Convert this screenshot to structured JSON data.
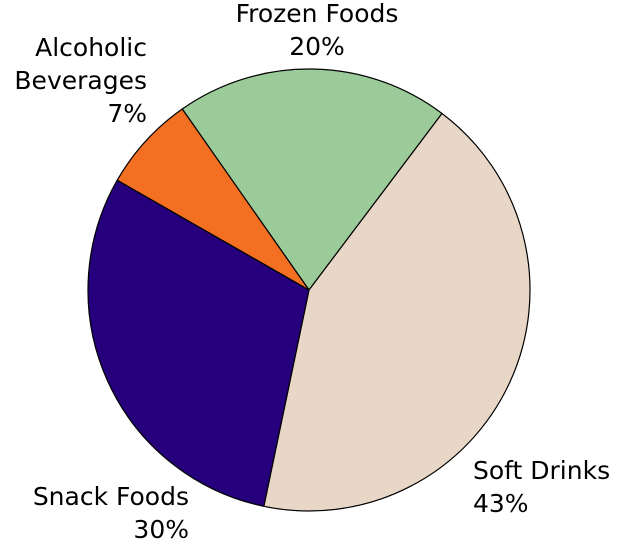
{
  "chart_data": {
    "type": "pie",
    "title": "",
    "slices": [
      {
        "name": "Frozen Foods",
        "value": 20,
        "label": "20%",
        "color": "#9ccb9a"
      },
      {
        "name": "Soft Drinks",
        "value": 43,
        "label": "43%",
        "color": "#e8d7c6"
      },
      {
        "name": "Snack Foods",
        "value": 30,
        "label": "30%",
        "color": "#26007c"
      },
      {
        "name": "Alcoholic Beverages",
        "name_lines": [
          "Alcoholic",
          "Beverages"
        ],
        "value": 7,
        "label": "7%",
        "color": "#f36f21"
      }
    ],
    "start_angle_deg": -35,
    "direction": "clockwise"
  }
}
